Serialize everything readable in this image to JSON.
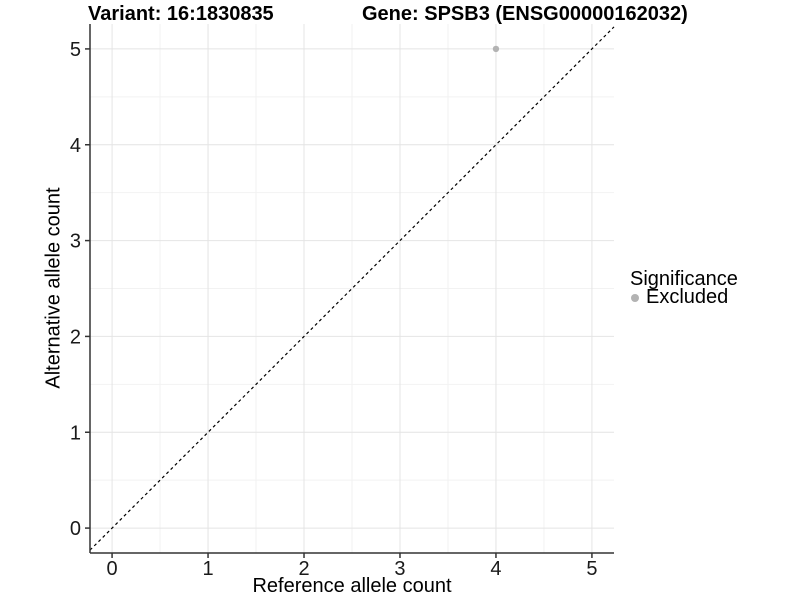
{
  "chart_data": {
    "type": "scatter",
    "title_left": "Variant: 16:1830835",
    "title_right": "Gene: SPSB3 (ENSG00000162032)",
    "xlabel": "Reference allele count",
    "ylabel": "Alternative allele count",
    "x_ticks": [
      0,
      1,
      2,
      3,
      4,
      5
    ],
    "y_ticks": [
      0,
      1,
      2,
      3,
      4,
      5
    ],
    "xlim": [
      -0.23,
      5.23
    ],
    "ylim": [
      -0.26,
      5.26
    ],
    "grid": "major and minor gridlines, white background",
    "series": [
      {
        "name": "Excluded",
        "color": "#b3b3b3",
        "point_radius": 3.2,
        "points": [
          {
            "x": 4,
            "y": 5
          }
        ]
      }
    ],
    "reference_line": {
      "type": "abline",
      "slope": 1,
      "intercept": 0,
      "style": "dashed",
      "color": "#000000"
    },
    "legend": {
      "title": "Significance",
      "position": "right",
      "entries": [
        {
          "label": "Excluded",
          "color": "#b3b3b3"
        }
      ]
    },
    "colors": {
      "grid_major": "#e4e4e4",
      "grid_minor": "#f2f2f2",
      "axis": "#333333",
      "text": "#000000",
      "background": "#ffffff"
    }
  }
}
